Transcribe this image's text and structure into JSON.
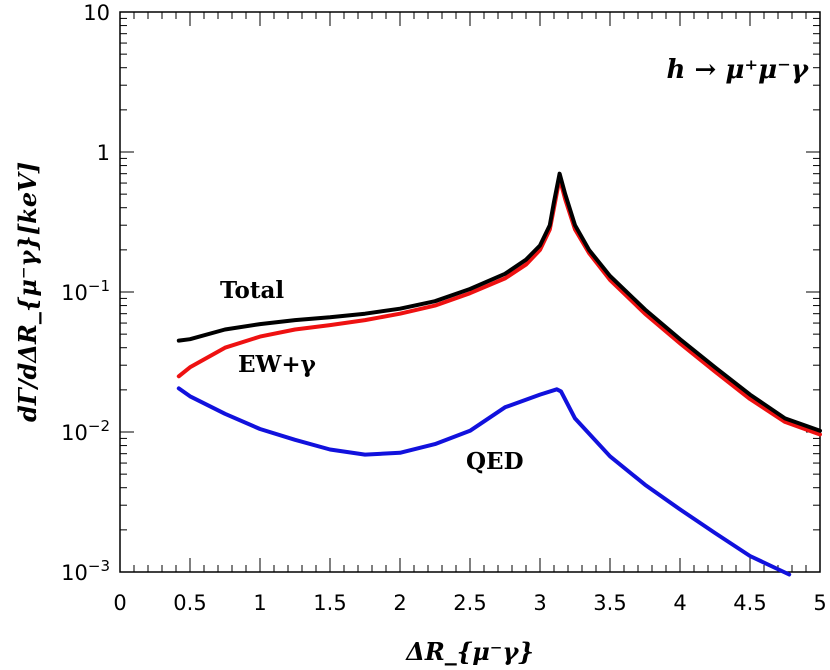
{
  "chart_data": {
    "type": "line",
    "title": "h → μ⁺μ⁻γ",
    "xlabel": "ΔR_{μ⁻γ}",
    "ylabel": "dΓ/dΔR_{μ⁻γ}[keV]",
    "x_scale": "linear",
    "y_scale": "log",
    "xlim": [
      0,
      5
    ],
    "ylim": [
      0.001,
      10
    ],
    "x_ticks": [
      "0",
      "0.5",
      "1",
      "1.5",
      "2",
      "2.5",
      "3",
      "3.5",
      "4",
      "4.5",
      "5"
    ],
    "y_ticks": [
      {
        "value": 0.001,
        "base": "10",
        "exp": "−3"
      },
      {
        "value": 0.01,
        "base": "10",
        "exp": "−2"
      },
      {
        "value": 0.1,
        "base": "10",
        "exp": "−1"
      },
      {
        "value": 1,
        "base": "1",
        "exp": ""
      },
      {
        "value": 10,
        "base": "10",
        "exp": ""
      }
    ],
    "grid": false,
    "series": [
      {
        "name": "Total",
        "color": "#000000",
        "points": [
          [
            0.42,
            0.045
          ],
          [
            0.5,
            0.046
          ],
          [
            0.75,
            0.054
          ],
          [
            1.0,
            0.059
          ],
          [
            1.25,
            0.063
          ],
          [
            1.5,
            0.066
          ],
          [
            1.75,
            0.07
          ],
          [
            2.0,
            0.076
          ],
          [
            2.25,
            0.086
          ],
          [
            2.5,
            0.105
          ],
          [
            2.75,
            0.135
          ],
          [
            2.9,
            0.17
          ],
          [
            3.0,
            0.215
          ],
          [
            3.07,
            0.3
          ],
          [
            3.1,
            0.44
          ],
          [
            3.14,
            0.7
          ],
          [
            3.18,
            0.5
          ],
          [
            3.25,
            0.3
          ],
          [
            3.35,
            0.2
          ],
          [
            3.5,
            0.13
          ],
          [
            3.75,
            0.075
          ],
          [
            4.0,
            0.046
          ],
          [
            4.25,
            0.029
          ],
          [
            4.5,
            0.0185
          ],
          [
            4.75,
            0.0125
          ],
          [
            5.0,
            0.0102
          ]
        ]
      },
      {
        "name": "EW+γ",
        "color": "#ee1111",
        "points": [
          [
            0.42,
            0.025
          ],
          [
            0.5,
            0.029
          ],
          [
            0.75,
            0.04
          ],
          [
            1.0,
            0.048
          ],
          [
            1.25,
            0.054
          ],
          [
            1.5,
            0.058
          ],
          [
            1.75,
            0.063
          ],
          [
            2.0,
            0.07
          ],
          [
            2.25,
            0.08
          ],
          [
            2.5,
            0.098
          ],
          [
            2.75,
            0.125
          ],
          [
            2.9,
            0.157
          ],
          [
            3.0,
            0.2
          ],
          [
            3.07,
            0.28
          ],
          [
            3.1,
            0.4
          ],
          [
            3.14,
            0.65
          ],
          [
            3.18,
            0.46
          ],
          [
            3.25,
            0.28
          ],
          [
            3.35,
            0.19
          ],
          [
            3.5,
            0.122
          ],
          [
            3.75,
            0.07
          ],
          [
            4.0,
            0.043
          ],
          [
            4.25,
            0.027
          ],
          [
            4.5,
            0.0172
          ],
          [
            4.75,
            0.0118
          ],
          [
            5.0,
            0.0096
          ]
        ]
      },
      {
        "name": "QED",
        "color": "#1111dd",
        "points": [
          [
            0.42,
            0.0205
          ],
          [
            0.5,
            0.018
          ],
          [
            0.75,
            0.0135
          ],
          [
            1.0,
            0.0105
          ],
          [
            1.25,
            0.0088
          ],
          [
            1.5,
            0.0075
          ],
          [
            1.75,
            0.0069
          ],
          [
            2.0,
            0.0071
          ],
          [
            2.25,
            0.0082
          ],
          [
            2.5,
            0.0102
          ],
          [
            2.75,
            0.015
          ],
          [
            3.0,
            0.0185
          ],
          [
            3.12,
            0.0202
          ],
          [
            3.15,
            0.0195
          ],
          [
            3.25,
            0.0125
          ],
          [
            3.5,
            0.0067
          ],
          [
            3.75,
            0.0042
          ],
          [
            4.0,
            0.0028
          ],
          [
            4.25,
            0.0019
          ],
          [
            4.5,
            0.0013
          ],
          [
            4.78,
            0.00096
          ]
        ]
      }
    ],
    "annotations": {
      "total": "Total",
      "ew": "EW+γ",
      "qed": "QED"
    }
  }
}
